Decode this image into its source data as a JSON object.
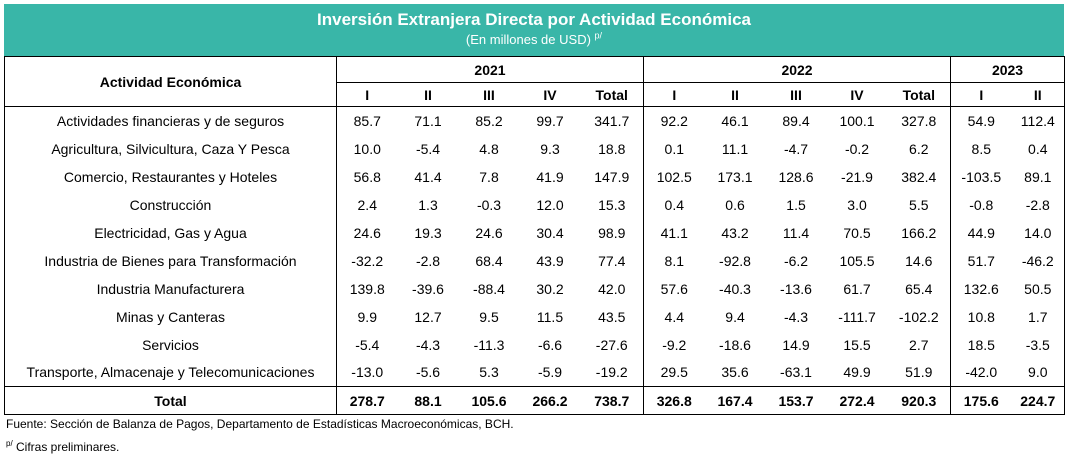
{
  "header": {
    "title": "Inversión Extranjera Directa por Actividad Económica",
    "subtitle": "(En millones de USD)",
    "subtitle_note": "p/"
  },
  "table": {
    "row_header": "Actividad Económica",
    "years": [
      "2021",
      "2022",
      "2023"
    ],
    "quarters_2021": [
      "I",
      "II",
      "III",
      "IV",
      "Total"
    ],
    "quarters_2022": [
      "I",
      "II",
      "III",
      "IV",
      "Total"
    ],
    "quarters_2023": [
      "I",
      "II"
    ],
    "rows": [
      {
        "label": "Actividades financieras y de seguros",
        "values": [
          "85.7",
          "71.1",
          "85.2",
          "99.7",
          "341.7",
          "92.2",
          "46.1",
          "89.4",
          "100.1",
          "327.8",
          "54.9",
          "112.4"
        ]
      },
      {
        "label": "Agricultura, Silvicultura, Caza Y Pesca",
        "values": [
          "10.0",
          "-5.4",
          "4.8",
          "9.3",
          "18.8",
          "0.1",
          "11.1",
          "-4.7",
          "-0.2",
          "6.2",
          "8.5",
          "0.4"
        ]
      },
      {
        "label": "Comercio, Restaurantes y Hoteles",
        "values": [
          "56.8",
          "41.4",
          "7.8",
          "41.9",
          "147.9",
          "102.5",
          "173.1",
          "128.6",
          "-21.9",
          "382.4",
          "-103.5",
          "89.1"
        ]
      },
      {
        "label": "Construcción",
        "values": [
          "2.4",
          "1.3",
          "-0.3",
          "12.0",
          "15.3",
          "0.4",
          "0.6",
          "1.5",
          "3.0",
          "5.5",
          "-0.8",
          "-2.8"
        ]
      },
      {
        "label": "Electricidad, Gas y Agua",
        "values": [
          "24.6",
          "19.3",
          "24.6",
          "30.4",
          "98.9",
          "41.1",
          "43.2",
          "11.4",
          "70.5",
          "166.2",
          "44.9",
          "14.0"
        ]
      },
      {
        "label": "Industria de Bienes para Transformación",
        "values": [
          "-32.2",
          "-2.8",
          "68.4",
          "43.9",
          "77.4",
          "8.1",
          "-92.8",
          "-6.2",
          "105.5",
          "14.6",
          "51.7",
          "-46.2"
        ]
      },
      {
        "label": "Industria Manufacturera",
        "values": [
          "139.8",
          "-39.6",
          "-88.4",
          "30.2",
          "42.0",
          "57.6",
          "-40.3",
          "-13.6",
          "61.7",
          "65.4",
          "132.6",
          "50.5"
        ]
      },
      {
        "label": "Minas y Canteras",
        "values": [
          "9.9",
          "12.7",
          "9.5",
          "11.5",
          "43.5",
          "4.4",
          "9.4",
          "-4.3",
          "-111.7",
          "-102.2",
          "10.8",
          "1.7"
        ]
      },
      {
        "label": "Servicios",
        "values": [
          "-5.4",
          "-4.3",
          "-11.3",
          "-6.6",
          "-27.6",
          "-9.2",
          "-18.6",
          "14.9",
          "15.5",
          "2.7",
          "18.5",
          "-3.5"
        ]
      },
      {
        "label": "Transporte, Almacenaje y Telecomunicaciones",
        "values": [
          "-13.0",
          "-5.6",
          "5.3",
          "-5.9",
          "-19.2",
          "29.5",
          "35.6",
          "-63.1",
          "49.9",
          "51.9",
          "-42.0",
          "9.0"
        ]
      }
    ],
    "total": {
      "label": "Total",
      "values": [
        "278.7",
        "88.1",
        "105.6",
        "266.2",
        "738.7",
        "326.8",
        "167.4",
        "153.7",
        "272.4",
        "920.3",
        "175.6",
        "224.7"
      ]
    }
  },
  "footer": {
    "source": "Fuente: Sección de Balanza de Pagos, Departamento de Estadísticas Macroeconómicas, BCH.",
    "note_mark": "p/",
    "note": " Cifras preliminares."
  },
  "colors": {
    "banner": "#39b6a8",
    "banner_text": "#ffffff"
  }
}
